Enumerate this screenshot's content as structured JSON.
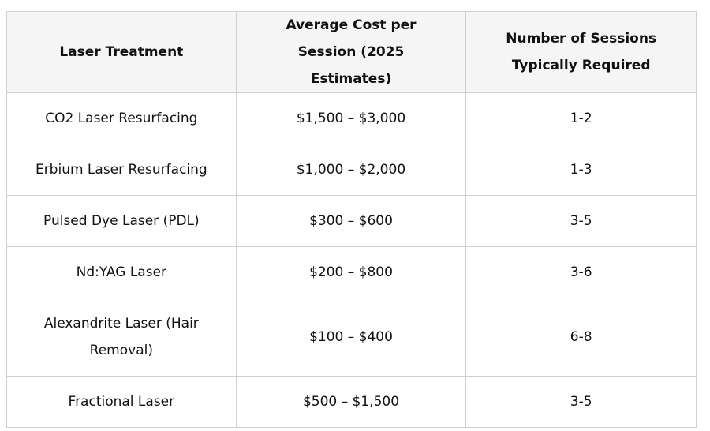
{
  "table": {
    "headers": [
      "Laser Treatment",
      "Average Cost per Session (2025 Estimates)",
      "Number of Sessions Typically Required"
    ],
    "rows": [
      [
        "CO2 Laser Resurfacing",
        "$1,500 – $3,000",
        "1-2"
      ],
      [
        "Erbium Laser Resurfacing",
        "$1,000 – $2,000",
        "1-3"
      ],
      [
        "Pulsed Dye Laser (PDL)",
        "$300 – $600",
        "3-5"
      ],
      [
        "Nd:YAG Laser",
        "$200 – $800",
        "3-6"
      ],
      [
        "Alexandrite Laser (Hair Removal)",
        "$100 – $400",
        "6-8"
      ],
      [
        "Fractional Laser",
        "$500 – $1,500",
        "3-5"
      ]
    ]
  }
}
